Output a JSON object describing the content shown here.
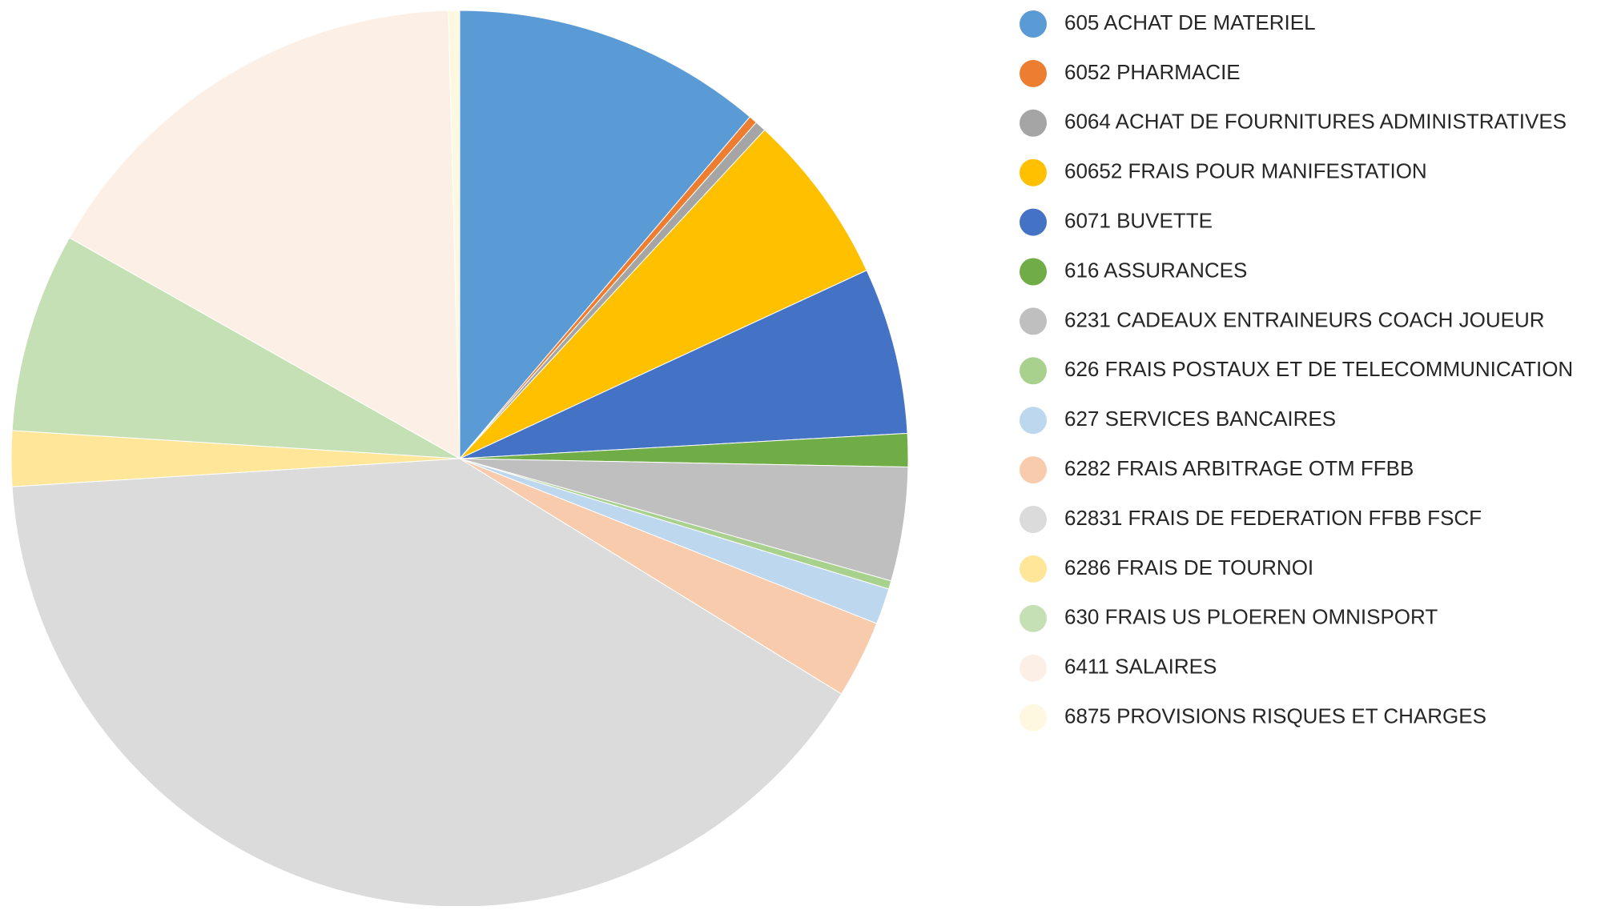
{
  "chart_data": {
    "type": "pie",
    "categories": [
      "605 ACHAT DE MATERIEL",
      "6052 PHARMACIE",
      "6064 ACHAT DE FOURNITURES ADMINISTRATIVES",
      "60652 FRAIS POUR MANIFESTATION",
      "6071 BUVETTE",
      "616 ASSURANCES",
      "6231 CADEAUX ENTRAINEURS COACH JOUEUR",
      "626 FRAIS POSTAUX ET DE TELECOMMUNICATION",
      "627 SERVICES BANCAIRES",
      "6282 FRAIS ARBITRAGE OTM FFBB",
      "62831 FRAIS DE FEDERATION FFBB FSCF",
      "6286 FRAIS DE TOURNOI",
      "630 FRAIS US PLOEREN OMNISPORT",
      "6411 SALAIRES",
      "6875 PROVISIONS RISQUES ET CHARGES"
    ],
    "values": [
      11.2,
      0.3,
      0.4,
      6.2,
      6.0,
      1.2,
      4.1,
      0.3,
      1.3,
      2.8,
      40.2,
      2.0,
      7.2,
      16.4,
      0.4
    ],
    "colors": [
      "#5b9bd5",
      "#ed7d31",
      "#a5a5a5",
      "#ffc000",
      "#4472c4",
      "#70ad47",
      "#bfbfbf",
      "#a9d18e",
      "#bdd7ee",
      "#f8cbad",
      "#dbdbdb",
      "#ffe699",
      "#c5e0b4",
      "#fcf0e6",
      "#fff8e1"
    ],
    "legend": "right"
  }
}
